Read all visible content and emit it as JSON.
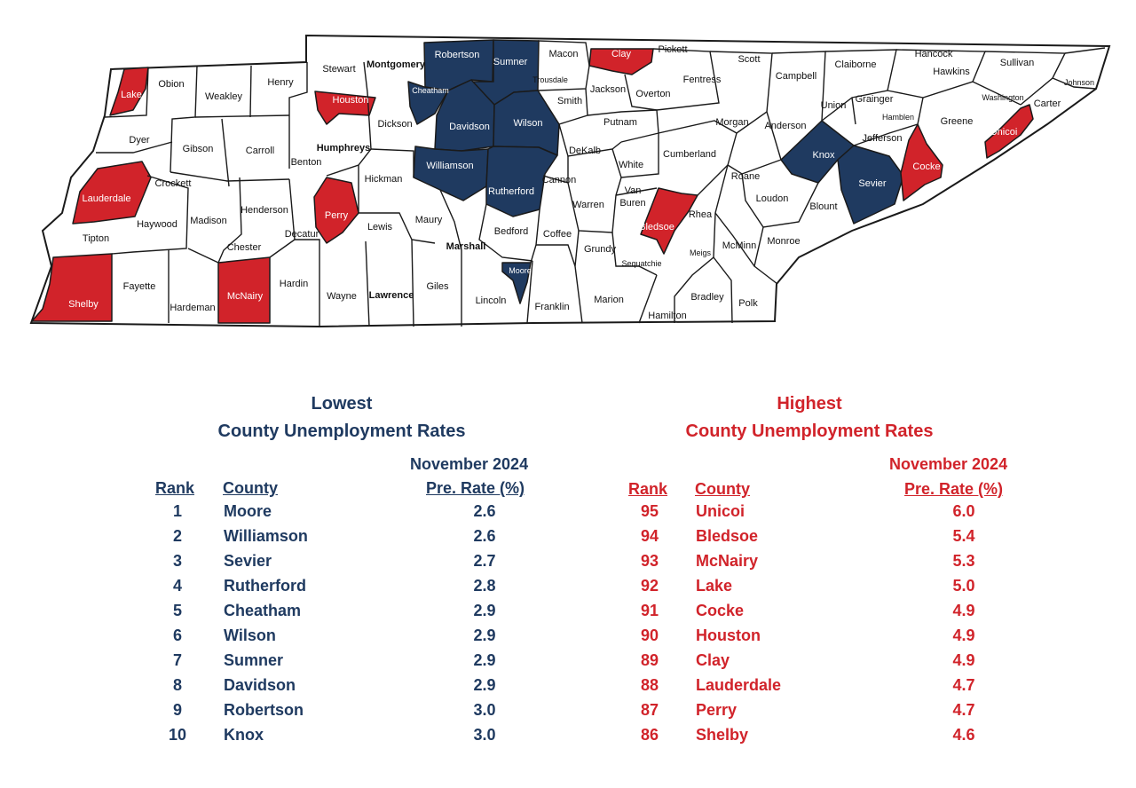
{
  "colors": {
    "low": "#1f3a60",
    "high": "#d1232a",
    "border": "#1a1a1a",
    "default": "#ffffff"
  },
  "counties": [
    {
      "name": "Lake",
      "status": "high"
    },
    {
      "name": "Obion",
      "status": "none"
    },
    {
      "name": "Weakley",
      "status": "none"
    },
    {
      "name": "Henry",
      "status": "none"
    },
    {
      "name": "Stewart",
      "status": "none"
    },
    {
      "name": "Montgomery",
      "status": "none"
    },
    {
      "name": "Robertson",
      "status": "low"
    },
    {
      "name": "Sumner",
      "status": "low"
    },
    {
      "name": "Macon",
      "status": "none"
    },
    {
      "name": "Clay",
      "status": "high"
    },
    {
      "name": "Pickett",
      "status": "none"
    },
    {
      "name": "Scott",
      "status": "none"
    },
    {
      "name": "Campbell",
      "status": "none"
    },
    {
      "name": "Claiborne",
      "status": "none"
    },
    {
      "name": "Hancock",
      "status": "none"
    },
    {
      "name": "Hawkins",
      "status": "none"
    },
    {
      "name": "Sullivan",
      "status": "none"
    },
    {
      "name": "Johnson",
      "status": "none"
    },
    {
      "name": "Dyer",
      "status": "none"
    },
    {
      "name": "Gibson",
      "status": "none"
    },
    {
      "name": "Carroll",
      "status": "none"
    },
    {
      "name": "Benton",
      "status": "none"
    },
    {
      "name": "Houston",
      "status": "high"
    },
    {
      "name": "Humphreys",
      "status": "none"
    },
    {
      "name": "Dickson",
      "status": "none"
    },
    {
      "name": "Cheatham",
      "status": "low"
    },
    {
      "name": "Davidson",
      "status": "low"
    },
    {
      "name": "Wilson",
      "status": "low"
    },
    {
      "name": "Trousdale",
      "status": "none"
    },
    {
      "name": "Smith",
      "status": "none"
    },
    {
      "name": "Jackson",
      "status": "none"
    },
    {
      "name": "Overton",
      "status": "none"
    },
    {
      "name": "Fentress",
      "status": "none"
    },
    {
      "name": "Morgan",
      "status": "none"
    },
    {
      "name": "Anderson",
      "status": "none"
    },
    {
      "name": "Union",
      "status": "none"
    },
    {
      "name": "Grainger",
      "status": "none"
    },
    {
      "name": "Hamblen",
      "status": "none"
    },
    {
      "name": "Greene",
      "status": "none"
    },
    {
      "name": "Washington",
      "status": "none"
    },
    {
      "name": "Carter",
      "status": "none"
    },
    {
      "name": "Unicoi",
      "status": "high"
    },
    {
      "name": "Lauderdale",
      "status": "high"
    },
    {
      "name": "Crockett",
      "status": "none"
    },
    {
      "name": "Haywood",
      "status": "none"
    },
    {
      "name": "Madison",
      "status": "none"
    },
    {
      "name": "Henderson",
      "status": "none"
    },
    {
      "name": "Decatur",
      "status": "none"
    },
    {
      "name": "Perry",
      "status": "high"
    },
    {
      "name": "Hickman",
      "status": "none"
    },
    {
      "name": "Williamson",
      "status": "low"
    },
    {
      "name": "Rutherford",
      "status": "low"
    },
    {
      "name": "Cannon",
      "status": "none"
    },
    {
      "name": "DeKalb",
      "status": "none"
    },
    {
      "name": "Putnam",
      "status": "none"
    },
    {
      "name": "White",
      "status": "none"
    },
    {
      "name": "Cumberland",
      "status": "none"
    },
    {
      "name": "Roane",
      "status": "none"
    },
    {
      "name": "Knox",
      "status": "low"
    },
    {
      "name": "Jefferson",
      "status": "none"
    },
    {
      "name": "Sevier",
      "status": "low"
    },
    {
      "name": "Cocke",
      "status": "high"
    },
    {
      "name": "Blount",
      "status": "none"
    },
    {
      "name": "Loudon",
      "status": "none"
    },
    {
      "name": "Tipton",
      "status": "none"
    },
    {
      "name": "Shelby",
      "status": "high"
    },
    {
      "name": "Fayette",
      "status": "none"
    },
    {
      "name": "Hardeman",
      "status": "none"
    },
    {
      "name": "Chester",
      "status": "none"
    },
    {
      "name": "McNairy",
      "status": "high"
    },
    {
      "name": "Hardin",
      "status": "none"
    },
    {
      "name": "Wayne",
      "status": "none"
    },
    {
      "name": "Lewis",
      "status": "none"
    },
    {
      "name": "Maury",
      "status": "none"
    },
    {
      "name": "Lawrence",
      "status": "none"
    },
    {
      "name": "Giles",
      "status": "none"
    },
    {
      "name": "Marshall",
      "status": "none"
    },
    {
      "name": "Bedford",
      "status": "none"
    },
    {
      "name": "Lincoln",
      "status": "none"
    },
    {
      "name": "Moore",
      "status": "low"
    },
    {
      "name": "Coffee",
      "status": "none"
    },
    {
      "name": "Franklin",
      "status": "none"
    },
    {
      "name": "Warren",
      "status": "none"
    },
    {
      "name": "Van Buren",
      "status": "none"
    },
    {
      "name": "Grundy",
      "status": "none"
    },
    {
      "name": "Marion",
      "status": "none"
    },
    {
      "name": "Sequatchie",
      "status": "none"
    },
    {
      "name": "Bledsoe",
      "status": "high"
    },
    {
      "name": "Rhea",
      "status": "none"
    },
    {
      "name": "Meigs",
      "status": "none"
    },
    {
      "name": "McMinn",
      "status": "none"
    },
    {
      "name": "Monroe",
      "status": "none"
    },
    {
      "name": "Hamilton",
      "status": "none"
    },
    {
      "name": "Bradley",
      "status": "none"
    },
    {
      "name": "Polk",
      "status": "none"
    }
  ],
  "lowest": {
    "title_line1": "Lowest",
    "title_line2": "County Unemployment Rates",
    "month": "November  2024",
    "rank_header": "Rank",
    "county_header": "County",
    "rate_header": "Pre. Rate (%)",
    "rows": [
      {
        "rank": "1",
        "county": "Moore",
        "rate": "2.6"
      },
      {
        "rank": "2",
        "county": "Williamson",
        "rate": "2.6"
      },
      {
        "rank": "3",
        "county": "Sevier",
        "rate": "2.7"
      },
      {
        "rank": "4",
        "county": "Rutherford",
        "rate": "2.8"
      },
      {
        "rank": "5",
        "county": "Cheatham",
        "rate": "2.9"
      },
      {
        "rank": "6",
        "county": "Wilson",
        "rate": "2.9"
      },
      {
        "rank": "7",
        "county": "Sumner",
        "rate": "2.9"
      },
      {
        "rank": "8",
        "county": "Davidson",
        "rate": "2.9"
      },
      {
        "rank": "9",
        "county": "Robertson",
        "rate": "3.0"
      },
      {
        "rank": "10",
        "county": "Knox",
        "rate": "3.0"
      }
    ]
  },
  "highest": {
    "title_line1": "Highest",
    "title_line2": "County Unemployment Rates",
    "month": "November  2024",
    "rank_header": "Rank",
    "county_header": "County",
    "rate_header": "Pre. Rate (%)",
    "rows": [
      {
        "rank": "95",
        "county": "Unicoi",
        "rate": "6.0"
      },
      {
        "rank": "94",
        "county": "Bledsoe",
        "rate": "5.4"
      },
      {
        "rank": "93",
        "county": "McNairy",
        "rate": "5.3"
      },
      {
        "rank": "92",
        "county": "Lake",
        "rate": "5.0"
      },
      {
        "rank": "91",
        "county": "Cocke",
        "rate": "4.9"
      },
      {
        "rank": "90",
        "county": "Houston",
        "rate": "4.9"
      },
      {
        "rank": "89",
        "county": "Clay",
        "rate": "4.9"
      },
      {
        "rank": "88",
        "county": "Lauderdale",
        "rate": "4.7"
      },
      {
        "rank": "87",
        "county": "Perry",
        "rate": "4.7"
      },
      {
        "rank": "86",
        "county": "Shelby",
        "rate": "4.6"
      }
    ]
  }
}
